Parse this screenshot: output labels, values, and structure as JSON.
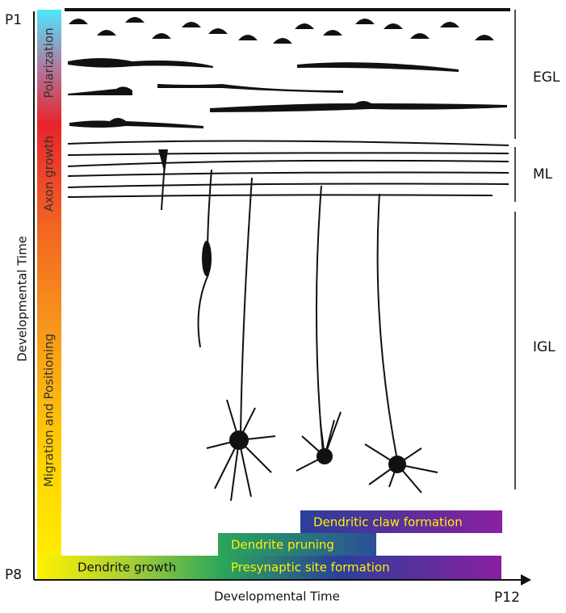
{
  "axes": {
    "y_start": "P1",
    "y_end": "P8",
    "x_end": "P12",
    "y_label": "Developmental Time",
    "x_label": "Developmental Time"
  },
  "vertical_stages": [
    "Polarization",
    "Axon growth",
    "Migration and Positioning"
  ],
  "layers": [
    "EGL",
    "ML",
    "IGL"
  ],
  "horizontal_stages": [
    "Dendrite growth",
    "Dendrite pruning",
    "Presynaptic site formation",
    "Dendritic claw formation"
  ]
}
